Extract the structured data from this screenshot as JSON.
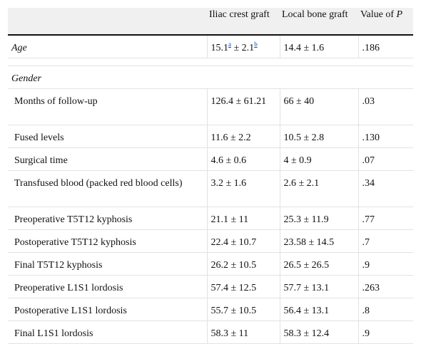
{
  "table": {
    "headers": {
      "col1": "",
      "col2": "Iliac crest graft",
      "col3": "Local bone graft",
      "col4_prefix": "Value of ",
      "col4_var": "P"
    },
    "age_row": {
      "label": "Age",
      "iliac_mean": "15.1",
      "iliac_sup_a": "a",
      "iliac_sd": " ± 2.1",
      "iliac_sup_b": "b",
      "local": "14.4 ± 1.6",
      "p": ".186"
    },
    "group_label": "Gender",
    "rows": [
      {
        "label": "Months of follow-up",
        "iliac": "126.4 ± 61.21",
        "local": "66 ± 40",
        "p": ".03"
      },
      {
        "label": "Fused levels",
        "iliac": "11.6 ± 2.2",
        "local": "10.5 ± 2.8",
        "p": ".130"
      },
      {
        "label": "Surgical time",
        "iliac": "4.6 ± 0.6",
        "local": "4 ± 0.9",
        "p": ".07"
      },
      {
        "label": "Transfused blood (packed red blood cells)",
        "iliac": "3.2 ± 1.6",
        "local": "2.6 ± 2.1",
        "p": ".34"
      },
      {
        "label": "Preoperative T5T12 kyphosis",
        "iliac": "21.1 ± 11",
        "local": "25.3 ± 11.9",
        "p": ".77"
      },
      {
        "label": "Postoperative T5T12 kyphosis",
        "iliac": "22.4 ± 10.7",
        "local": "23.58 ± 14.5",
        "p": ".7"
      },
      {
        "label": "Final T5T12 kyphosis",
        "iliac": "26.2 ± 10.5",
        "local": "26.5 ± 26.5",
        "p": ".9"
      },
      {
        "label": "Preoperative L1S1 lordosis",
        "iliac": "57.4 ± 12.5",
        "local": "57.7 ± 13.1",
        "p": ".263"
      },
      {
        "label": "Postoperative L1S1 lordosis",
        "iliac": "55.7 ± 10.5",
        "local": "56.4 ± 13.1",
        "p": ".8"
      },
      {
        "label": "Final L1S1 lordosis",
        "iliac": "58.3 ± 11",
        "local": "58.3 ± 12.4",
        "p": ".9"
      }
    ]
  }
}
